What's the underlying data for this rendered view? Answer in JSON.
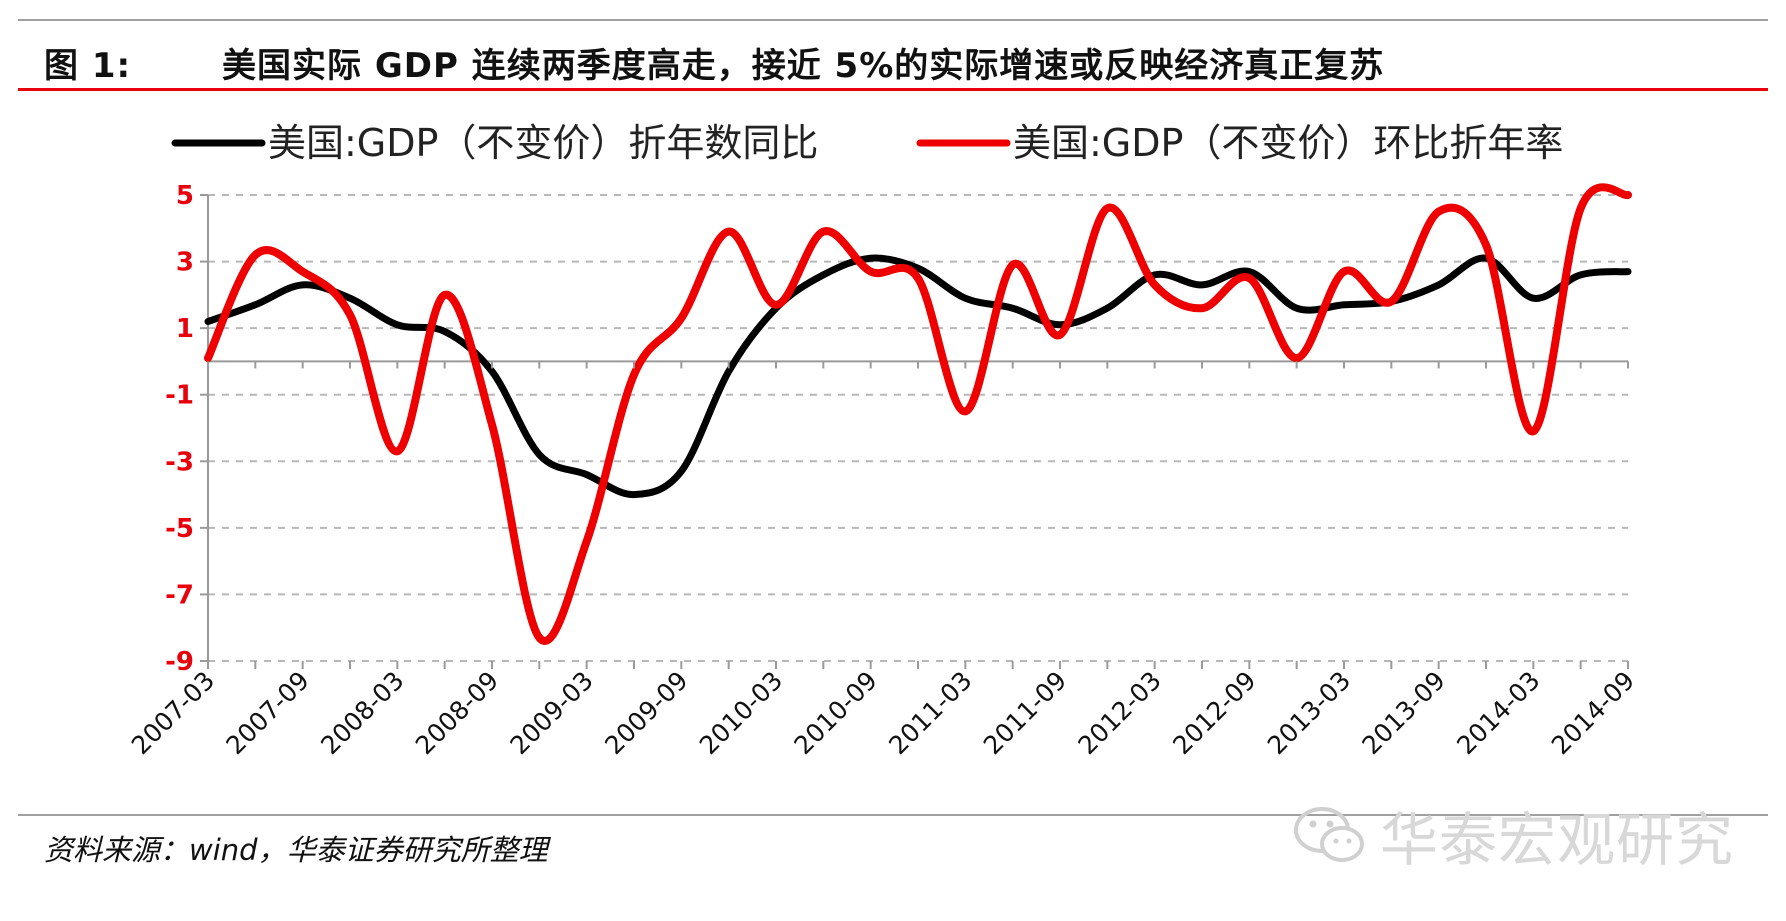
{
  "header": {
    "figure_label": "图 1:",
    "title": "美国实际 GDP 连续两季度高走，接近 5%的实际增速或反映经济真正复苏"
  },
  "footer": {
    "source": "资料来源：wind，华泰证券研究所整理",
    "watermark": "华泰宏观研究"
  },
  "chart_data": {
    "type": "line",
    "title": "美国实际 GDP 连续两季度高走，接近 5%的实际增速或反映经济真正复苏",
    "xlabel": "",
    "ylabel": "",
    "ylim": [
      -9,
      5
    ],
    "yticks": [
      "5",
      "3",
      "1",
      "-1",
      "-3",
      "-5",
      "-7",
      "-9"
    ],
    "ytick_values": [
      5,
      3,
      1,
      -1,
      -3,
      -5,
      -7,
      -9
    ],
    "categories": [
      "2007-03",
      "2007-06",
      "2007-09",
      "2007-12",
      "2008-03",
      "2008-06",
      "2008-09",
      "2008-12",
      "2009-03",
      "2009-06",
      "2009-09",
      "2009-12",
      "2010-03",
      "2010-06",
      "2010-09",
      "2010-12",
      "2011-03",
      "2011-06",
      "2011-09",
      "2011-12",
      "2012-03",
      "2012-06",
      "2012-09",
      "2012-12",
      "2013-03",
      "2013-06",
      "2013-09",
      "2013-12",
      "2014-03",
      "2014-06",
      "2014-09"
    ],
    "xtick_labels": [
      "2007-03",
      "2007-09",
      "2008-03",
      "2008-09",
      "2009-03",
      "2009-09",
      "2010-03",
      "2010-09",
      "2011-03",
      "2011-09",
      "2012-03",
      "2012-09",
      "2013-03",
      "2013-09",
      "2014-03",
      "2014-09"
    ],
    "legend_position": "top",
    "grid": "horizontal dashed",
    "series": [
      {
        "name": "美国:GDP（不变价）折年数同比",
        "color": "#000000",
        "values": [
          1.2,
          1.7,
          2.3,
          1.9,
          1.1,
          0.9,
          -0.3,
          -2.8,
          -3.4,
          -4.0,
          -3.3,
          -0.3,
          1.6,
          2.6,
          3.1,
          2.8,
          1.9,
          1.6,
          1.1,
          1.6,
          2.6,
          2.3,
          2.7,
          1.6,
          1.7,
          1.8,
          2.3,
          3.1,
          1.9,
          2.6,
          2.7
        ]
      },
      {
        "name": "美国:GDP（不变价）环比折年率",
        "color": "#ee0000",
        "values": [
          0.1,
          3.2,
          2.7,
          1.4,
          -2.7,
          2.0,
          -1.9,
          -8.3,
          -5.4,
          -0.4,
          1.3,
          3.9,
          1.7,
          3.9,
          2.7,
          2.5,
          -1.5,
          2.9,
          0.8,
          4.6,
          2.3,
          1.6,
          2.5,
          0.1,
          2.7,
          1.8,
          4.5,
          3.5,
          -2.1,
          4.6,
          5.0
        ]
      }
    ]
  }
}
